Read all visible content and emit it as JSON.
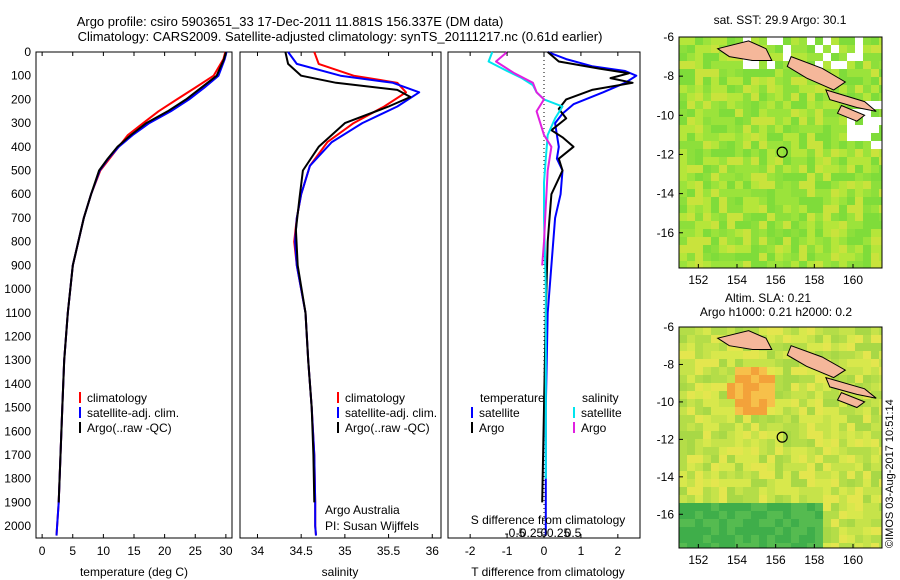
{
  "header": {
    "line1": "Argo profile: csiro 5903651_33 17-Dec-2011 11.881S 156.337E (DM data)",
    "line2": "Climatology: CARS2009. Satellite-adjusted climatology: synTS_20111217.nc (0.61d earlier)"
  },
  "colors": {
    "climatology": "#ff0000",
    "satellite": "#0000ff",
    "argo": "#000000",
    "sal_satellite": "#00e5ee",
    "sal_argo": "#e020e0"
  },
  "depth_axis": {
    "ticks": [
      0,
      100,
      200,
      300,
      400,
      500,
      600,
      700,
      800,
      900,
      1000,
      1100,
      1200,
      1300,
      1400,
      1500,
      1600,
      1700,
      1800,
      1900,
      2000
    ],
    "ylim": [
      0,
      2050
    ]
  },
  "chart_data": [
    {
      "id": "temperature",
      "type": "line",
      "xlabel": "temperature (deg C)",
      "xlim": [
        -1,
        31
      ],
      "xticks": [
        0,
        5,
        10,
        15,
        20,
        25,
        30
      ],
      "legend": [
        "climatology",
        "satellite-adj. clim.",
        "Argo(..raw -QC)"
      ],
      "series": [
        {
          "name": "climatology",
          "color": "#ff0000",
          "x": [
            29.9,
            29.6,
            28.0,
            25.0,
            22.0,
            19.0,
            16.5,
            14.0,
            12.5,
            11.0,
            9.5,
            8.0,
            6.8,
            5.0,
            4.2,
            3.6,
            3.3,
            3.0,
            2.7,
            2.45,
            2.35
          ],
          "y": [
            0,
            30,
            100,
            150,
            200,
            250,
            300,
            350,
            400,
            450,
            500,
            600,
            700,
            900,
            1100,
            1300,
            1500,
            1700,
            1900,
            2000,
            2040
          ]
        },
        {
          "name": "satellite-adj. clim.",
          "color": "#0000ff",
          "x": [
            30.1,
            29.8,
            28.8,
            26.5,
            24.0,
            21.0,
            17.5,
            14.8,
            12.5,
            10.8,
            9.4,
            8.0,
            6.8,
            5.0,
            4.2,
            3.6,
            3.3,
            3.0,
            2.7,
            2.45,
            2.35
          ],
          "y": [
            0,
            30,
            100,
            150,
            200,
            250,
            300,
            350,
            400,
            450,
            500,
            600,
            700,
            900,
            1100,
            1300,
            1500,
            1700,
            1900,
            2000,
            2040
          ]
        },
        {
          "name": "Argo(..raw -QC)",
          "color": "#000000",
          "x": [
            30.0,
            29.7,
            28.5,
            26.0,
            23.5,
            20.5,
            17.0,
            14.5,
            12.3,
            10.7,
            9.3,
            8.0,
            6.8,
            5.0,
            4.2,
            3.6,
            3.3,
            3.0,
            2.7
          ],
          "y": [
            0,
            30,
            100,
            150,
            200,
            250,
            300,
            350,
            400,
            450,
            500,
            600,
            700,
            900,
            1100,
            1300,
            1500,
            1700,
            1900
          ]
        }
      ]
    },
    {
      "id": "salinity",
      "type": "line",
      "xlabel": "salinity",
      "xlim": [
        33.8,
        36.1
      ],
      "xticks": [
        34,
        34.5,
        35,
        35.5,
        36
      ],
      "xticklabels": [
        "34",
        "34.5",
        "35",
        "35.5",
        "36"
      ],
      "legend": [
        "climatology",
        "satellite-adj. clim.",
        "Argo(..raw -QC)"
      ],
      "note": [
        "Argo Australia",
        "PI: Susan Wijffels"
      ],
      "series": [
        {
          "name": "climatology",
          "color": "#ff0000",
          "x": [
            34.65,
            34.7,
            35.1,
            35.6,
            35.7,
            35.45,
            35.1,
            34.8,
            34.6,
            34.5,
            34.45,
            34.42,
            34.45,
            34.55,
            34.58,
            34.62,
            34.65,
            34.66,
            34.66,
            34.67
          ],
          "y": [
            0,
            50,
            100,
            130,
            170,
            230,
            300,
            380,
            480,
            600,
            700,
            800,
            900,
            1100,
            1300,
            1500,
            1700,
            1900,
            2000,
            2040
          ]
        },
        {
          "name": "satellite-adj. clim.",
          "color": "#0000ff",
          "x": [
            34.35,
            34.45,
            34.95,
            35.55,
            35.85,
            35.6,
            35.2,
            34.85,
            34.6,
            34.5,
            34.45,
            34.43,
            34.45,
            34.55,
            34.58,
            34.62,
            34.65,
            34.66,
            34.66,
            34.67
          ],
          "y": [
            0,
            50,
            100,
            130,
            170,
            230,
            300,
            380,
            480,
            600,
            700,
            800,
            900,
            1100,
            1300,
            1500,
            1700,
            1900,
            2000,
            2040
          ]
        },
        {
          "name": "Argo(..raw -QC)",
          "color": "#000000",
          "x": [
            34.32,
            34.35,
            34.5,
            34.9,
            35.6,
            35.75,
            35.5,
            35.0,
            34.7,
            34.52,
            34.48,
            34.44,
            34.46,
            34.55,
            34.58,
            34.62,
            34.64,
            34.65
          ],
          "y": [
            0,
            50,
            100,
            130,
            160,
            190,
            230,
            300,
            400,
            500,
            620,
            750,
            900,
            1100,
            1300,
            1500,
            1700,
            1900
          ]
        }
      ]
    },
    {
      "id": "difference",
      "type": "line",
      "xlabel": "T difference from climatology",
      "top_label": "S difference from climatology",
      "xlim": [
        -2.6,
        2.6
      ],
      "xticks": [
        -2,
        -1,
        0,
        1,
        2
      ],
      "s_ticks": [
        -0.5,
        -0.25,
        0,
        0.25,
        0.5
      ],
      "s_ticklabels": [
        "-0.5",
        "-0.25",
        "0",
        "0.25",
        "0.5"
      ],
      "legend_left": {
        "title": "temperature",
        "items": [
          "satellite",
          "Argo"
        ]
      },
      "legend_right": {
        "title": "salinity",
        "items": [
          "satellite",
          "Argo"
        ]
      },
      "series": [
        {
          "name": "T satellite",
          "color": "#0000ff",
          "x": [
            0.1,
            0.6,
            1.3,
            2.2,
            2.5,
            2.2,
            1.6,
            0.8,
            0.5,
            0.3,
            0.35,
            0.4,
            0.35,
            0.5,
            0.45,
            0.3,
            0.2,
            0.1,
            0.05,
            0.05,
            0.05
          ],
          "y": [
            0,
            30,
            60,
            80,
            100,
            130,
            170,
            220,
            260,
            300,
            350,
            400,
            450,
            500,
            600,
            700,
            900,
            1100,
            1500,
            1900,
            2040
          ]
        },
        {
          "name": "T Argo",
          "color": "#000000",
          "x": [
            0.1,
            0.4,
            1.5,
            2.3,
            1.8,
            2.4,
            1.3,
            0.6,
            0.4,
            0.6,
            0.2,
            0.5,
            0.8,
            0.4,
            0.5,
            0.2,
            0.1,
            0.05,
            0.0,
            -0.05
          ],
          "y": [
            0,
            40,
            70,
            90,
            110,
            130,
            160,
            200,
            240,
            280,
            330,
            360,
            400,
            450,
            500,
            600,
            800,
            1100,
            1500,
            1900
          ]
        },
        {
          "name": "S satellite",
          "color": "#00e5ee",
          "x": [
            -1.4,
            -1.5,
            -1.0,
            -0.6,
            -0.3,
            -0.2,
            0.0,
            0.5,
            0.3,
            0.1,
            0.05,
            0.0,
            0.0,
            0.05,
            0.05,
            0.05
          ],
          "y": [
            0,
            40,
            80,
            110,
            140,
            170,
            200,
            230,
            280,
            350,
            450,
            550,
            700,
            1000,
            1400,
            1800
          ]
        },
        {
          "name": "S Argo",
          "color": "#e020e0",
          "x": [
            -1.0,
            -1.3,
            -0.8,
            -0.3,
            -0.2,
            0.0,
            -0.2,
            -0.1,
            0.0,
            0.2,
            0.1,
            0.05,
            0.0,
            -0.05
          ],
          "y": [
            0,
            40,
            90,
            130,
            170,
            200,
            250,
            300,
            350,
            400,
            500,
            650,
            800,
            900
          ]
        }
      ]
    },
    {
      "id": "sst_map",
      "type": "heatmap",
      "title": "sat. SST: 29.9 Argo: 30.1",
      "xticks": [
        152,
        154,
        156,
        158,
        160
      ],
      "xticklabels": [
        "152",
        "154",
        "156",
        "158",
        "160"
      ],
      "yticks": [
        -6,
        -8,
        -10,
        -12,
        -14,
        -16
      ],
      "yticklabels": [
        "-6",
        "-8",
        "-10",
        "-12",
        "-14",
        "-16"
      ],
      "xlim": [
        151,
        161.5
      ],
      "ylim": [
        -17.8,
        -6
      ],
      "float_position": {
        "lon": 156.337,
        "lat": -11.881
      }
    },
    {
      "id": "sla_map",
      "type": "heatmap",
      "title_line1": "Altim. SLA: 0.21",
      "title_line2": "Argo h1000: 0.21 h2000: 0.2",
      "xticks": [
        152,
        154,
        156,
        158,
        160
      ],
      "xticklabels": [
        "152",
        "154",
        "156",
        "158",
        "160"
      ],
      "yticks": [
        -6,
        -8,
        -10,
        -12,
        -14,
        -16
      ],
      "yticklabels": [
        "-6",
        "-8",
        "-10",
        "-12",
        "-14",
        "-16"
      ],
      "xlim": [
        151,
        161.5
      ],
      "ylim": [
        -17.8,
        -6
      ],
      "float_position": {
        "lon": 156.337,
        "lat": -11.881
      }
    }
  ],
  "footer_stamp": "©IMOS 03-Aug-2017 10:51:14"
}
